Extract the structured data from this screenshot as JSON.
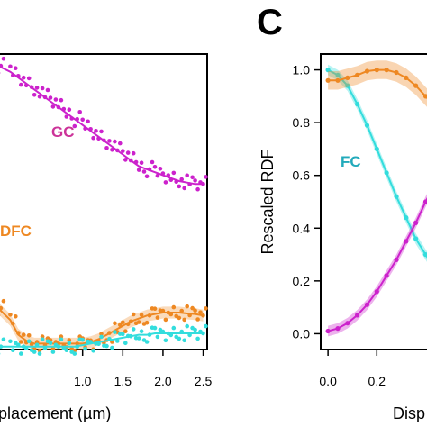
{
  "colors": {
    "magenta": "#cc22cc",
    "orange": "#ee8822",
    "cyan": "#33dddd",
    "fc_label": "#22aabb",
    "gc_label": "#cc3399"
  },
  "chart_data": [
    {
      "type": "scatter",
      "panel": "",
      "xlabel": "placement (µm)",
      "ylabel": "",
      "xlim": [
        -0.05,
        2.55
      ],
      "ylim": [
        0.0,
        1.0
      ],
      "x_ticks": [
        "1.0",
        "1.5",
        "2.0",
        "2.5"
      ],
      "series": [
        {
          "name": "GC",
          "color": "#cc22cc",
          "x": [
            -0.05,
            0.1,
            0.2,
            0.3,
            0.4,
            0.5,
            0.6,
            0.7,
            0.8,
            0.9,
            1.0,
            1.1,
            1.2,
            1.3,
            1.4,
            1.5,
            1.6,
            1.7,
            1.8,
            1.9,
            2.0,
            2.1,
            2.2,
            2.3,
            2.4,
            2.5
          ],
          "y": [
            0.96,
            0.94,
            0.92,
            0.9,
            0.88,
            0.86,
            0.84,
            0.82,
            0.8,
            0.78,
            0.76,
            0.74,
            0.72,
            0.7,
            0.68,
            0.66,
            0.64,
            0.62,
            0.61,
            0.6,
            0.59,
            0.58,
            0.57,
            0.565,
            0.56,
            0.56
          ]
        },
        {
          "name": "DFC",
          "color": "#ee8822",
          "x": [
            -0.05,
            0.1,
            0.2,
            0.3,
            0.4,
            0.5,
            0.6,
            0.7,
            0.8,
            0.9,
            1.0,
            1.1,
            1.2,
            1.3,
            1.4,
            1.5,
            1.6,
            1.7,
            1.8,
            1.9,
            2.0,
            2.1,
            2.2,
            2.3,
            2.4,
            2.5
          ],
          "y": [
            0.14,
            0.1,
            0.05,
            0.03,
            0.02,
            0.02,
            0.02,
            0.02,
            0.02,
            0.02,
            0.02,
            0.025,
            0.035,
            0.05,
            0.065,
            0.08,
            0.095,
            0.105,
            0.115,
            0.12,
            0.125,
            0.125,
            0.125,
            0.122,
            0.12,
            0.115
          ]
        },
        {
          "name": "",
          "color": "#33dddd",
          "x": [
            -0.05,
            0.1,
            0.2,
            0.3,
            0.4,
            0.5,
            0.6,
            0.7,
            0.8,
            0.9,
            1.0,
            1.1,
            1.2,
            1.3,
            1.4,
            1.5,
            1.6,
            1.7,
            1.8,
            1.9,
            2.0,
            2.1,
            2.2,
            2.3,
            2.4,
            2.5
          ],
          "y": [
            0.01,
            0.01,
            0.01,
            0.01,
            0.01,
            0.01,
            0.01,
            0.01,
            0.01,
            0.01,
            0.015,
            0.02,
            0.025,
            0.03,
            0.035,
            0.04,
            0.045,
            0.05,
            0.05,
            0.055,
            0.055,
            0.055,
            0.055,
            0.055,
            0.055,
            0.055
          ]
        }
      ],
      "labels": [
        "GC",
        "DFC"
      ]
    },
    {
      "type": "line",
      "panel": "C",
      "xlabel": "Disp",
      "ylabel": "Rescaled RDF",
      "xlim": [
        -0.03,
        0.45
      ],
      "ylim": [
        -0.06,
        1.06
      ],
      "x_ticks": [
        "0.0",
        "0.2"
      ],
      "y_ticks": [
        "0.0",
        "0.2",
        "0.4",
        "0.6",
        "0.8",
        "1.0"
      ],
      "series": [
        {
          "name": "FC",
          "color": "#33dddd",
          "x": [
            0.0,
            0.04,
            0.08,
            0.12,
            0.16,
            0.2,
            0.24,
            0.28,
            0.32,
            0.36,
            0.4,
            0.44
          ],
          "y": [
            1.0,
            0.98,
            0.94,
            0.87,
            0.79,
            0.7,
            0.61,
            0.52,
            0.44,
            0.36,
            0.3,
            0.24
          ]
        },
        {
          "name": "",
          "color": "#ee8822",
          "x": [
            0.0,
            0.04,
            0.08,
            0.12,
            0.16,
            0.2,
            0.24,
            0.28,
            0.32,
            0.36,
            0.4,
            0.44
          ],
          "y": [
            0.96,
            0.96,
            0.97,
            0.98,
            0.995,
            1.0,
            1.0,
            0.99,
            0.97,
            0.94,
            0.9,
            0.86
          ]
        },
        {
          "name": "",
          "color": "#cc22cc",
          "x": [
            0.0,
            0.04,
            0.08,
            0.12,
            0.16,
            0.2,
            0.24,
            0.28,
            0.32,
            0.36,
            0.4,
            0.44
          ],
          "y": [
            0.01,
            0.02,
            0.04,
            0.07,
            0.11,
            0.16,
            0.22,
            0.28,
            0.35,
            0.42,
            0.5,
            0.57
          ]
        }
      ],
      "labels": [
        "FC"
      ]
    }
  ]
}
